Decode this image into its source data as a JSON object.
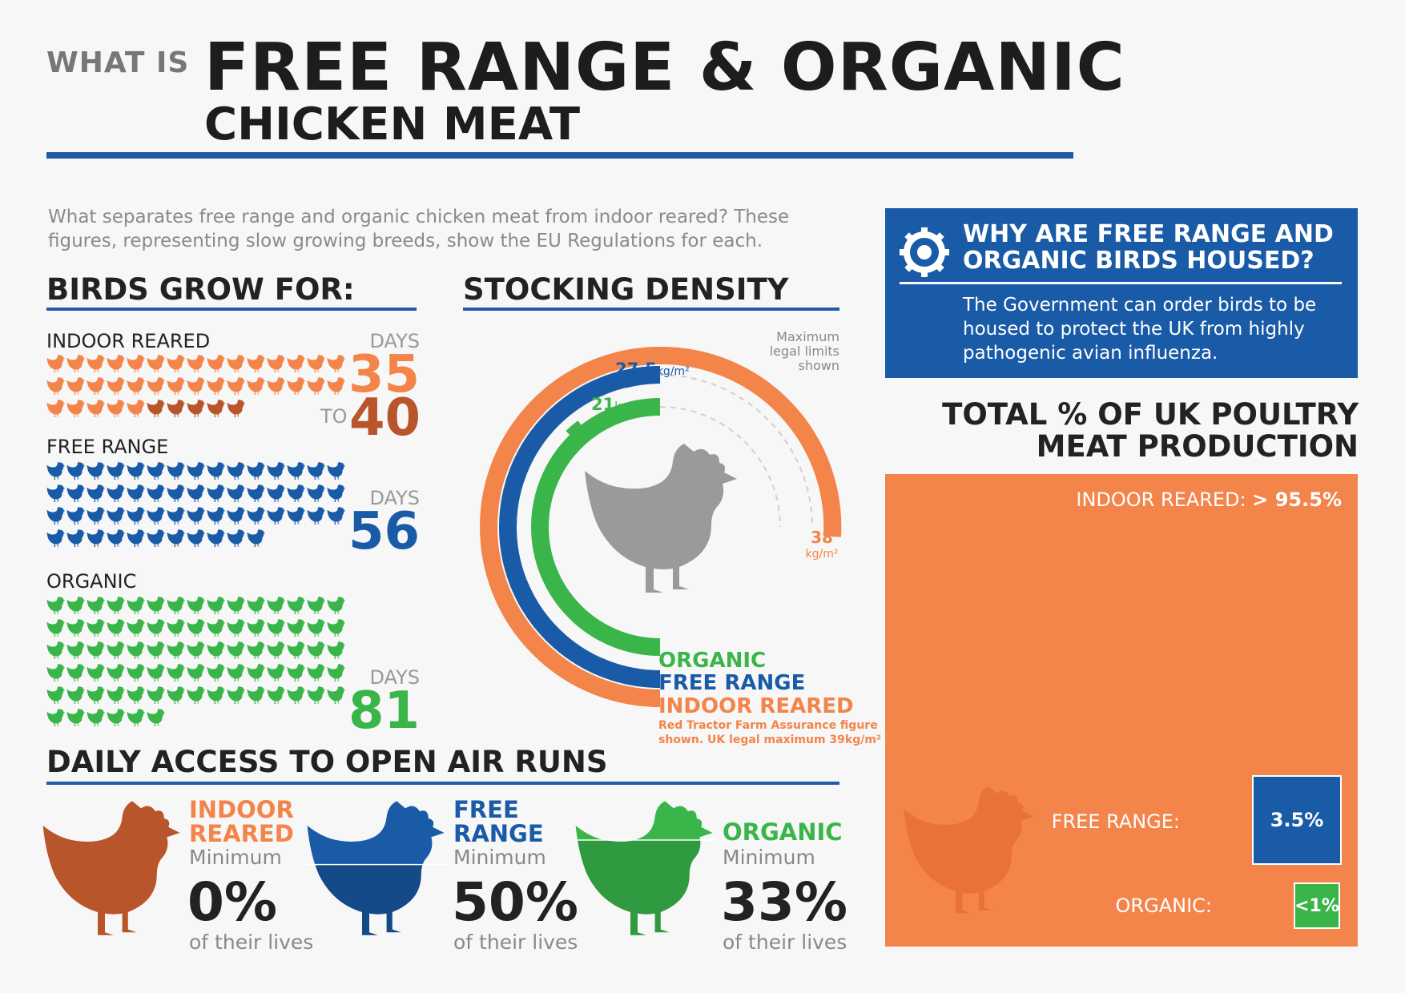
{
  "header": {
    "pre": "WHAT IS",
    "title": "FREE RANGE & ORGANIC",
    "subtitle": "CHICKEN MEAT"
  },
  "intro": "What separates free range and organic chicken meat from indoor reared? These figures, representing slow growing breeds, show the EU Regulations for each.",
  "grow": {
    "heading": "BIRDS GROW FOR:",
    "days_word": "DAYS",
    "to_word": "TO",
    "groups": [
      {
        "label": "INDOOR REARED",
        "count_main": 35,
        "count_extra": 5,
        "value_min": "35",
        "value_max": "40",
        "color": "#f3844a",
        "extra_color": "#b9552b"
      },
      {
        "label": "FREE RANGE",
        "count_main": 56,
        "value": "56",
        "color": "#1a5ba8"
      },
      {
        "label": "ORGANIC",
        "count_main": 81,
        "value": "81",
        "color": "#3ab54a"
      }
    ]
  },
  "stocking": {
    "heading": "STOCKING DENSITY",
    "note": "Maximum legal limits shown",
    "unit": "kg/m²",
    "rings": [
      {
        "name": "INDOOR REARED",
        "value": 38,
        "color": "#f3844a"
      },
      {
        "name": "FREE RANGE",
        "value": 27.5,
        "color": "#1a5ba8"
      },
      {
        "name": "ORGANIC",
        "value": 21,
        "color": "#3ab54a"
      }
    ],
    "labels": {
      "organic": "21",
      "free_range": "27.5",
      "indoor": "38"
    },
    "footnote_1": "Red Tractor Farm Assurance figure",
    "footnote_2": "shown. UK legal maximum 39kg/m²"
  },
  "info": {
    "title": "WHY ARE FREE RANGE AND ORGANIC BIRDS HOUSED?",
    "body": "The Government can order birds to be housed to protect the UK from highly pathogenic avian influenza."
  },
  "production": {
    "title_1": "TOTAL % OF UK POULTRY",
    "title_2": "MEAT PRODUCTION",
    "indoor_label": "INDOOR REARED:",
    "indoor_value": "> 95.5%",
    "free_label": "FREE RANGE:",
    "free_value": "3.5%",
    "organic_label": "ORGANIC:",
    "organic_value": "<1%",
    "colors": {
      "indoor": "#f3844a",
      "free": "#1a5ba8",
      "organic": "#3ab54a"
    }
  },
  "runs": {
    "heading": "DAILY ACCESS TO OPEN AIR RUNS",
    "minimum_word": "Minimum",
    "lives_word": "of their lives",
    "items": [
      {
        "name_1": "INDOOR",
        "name_2": "REARED",
        "value": "0%",
        "fill_fraction": 0,
        "color": "#b9552b"
      },
      {
        "name_1": "FREE",
        "name_2": "RANGE",
        "value": "50%",
        "fill_fraction": 0.5,
        "color": "#1a5ba8"
      },
      {
        "name_1": "ORGANIC",
        "name_2": "",
        "value": "33%",
        "fill_fraction": 0.33,
        "color": "#3ab54a"
      }
    ]
  }
}
